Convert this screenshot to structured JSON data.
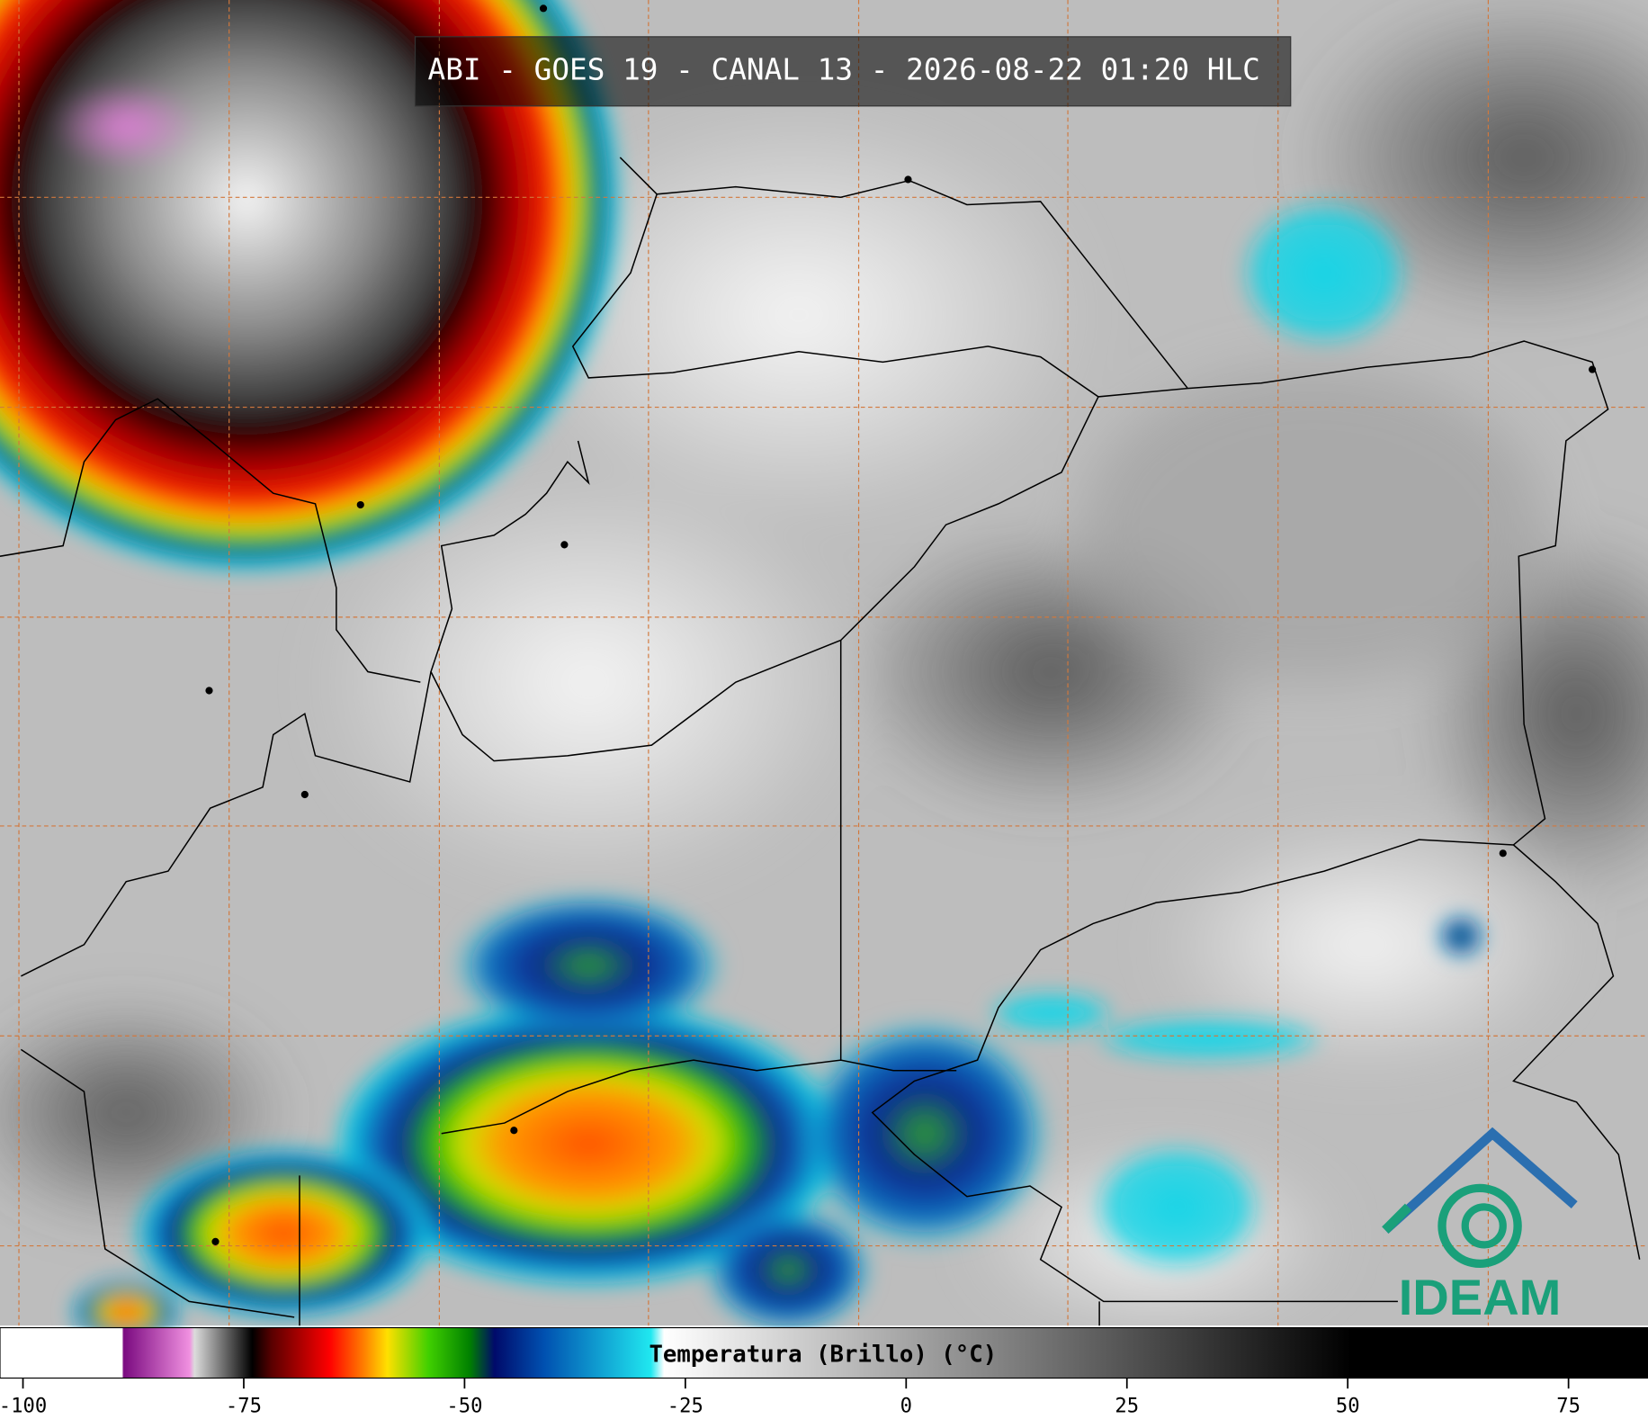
{
  "title": "ABI - GOES 19 - CANAL 13 - 2026-08-22 01:20 HLC",
  "colorbar": {
    "label": "Temperatura (Brillo) (°C)",
    "lim": [
      -102.6,
      84
    ],
    "ticks": [
      -100,
      -75,
      -50,
      -25,
      0,
      25,
      50,
      75
    ]
  },
  "logo": "IDEAM"
}
